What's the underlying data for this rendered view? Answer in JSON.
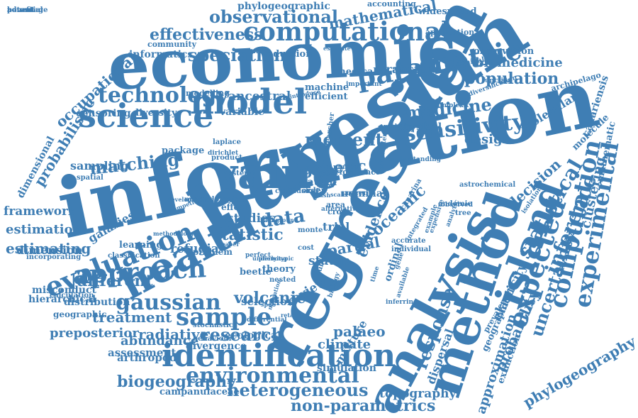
{
  "title": "",
  "colors": {
    "word": "#3f7eb4",
    "background": "#ffffff"
  },
  "words": [
    {
      "text": "information",
      "weight": 100
    },
    {
      "text": "bayesian",
      "weight": 98
    },
    {
      "text": "regression",
      "weight": 95
    },
    {
      "text": "economic",
      "weight": 75
    },
    {
      "text": "analysis",
      "weight": 72
    },
    {
      "text": "method",
      "weight": 68
    },
    {
      "text": "health",
      "weight": 58
    },
    {
      "text": "value",
      "weight": 55
    },
    {
      "text": "island",
      "weight": 52
    },
    {
      "text": "model",
      "weight": 50
    },
    {
      "text": "science",
      "weight": 48
    },
    {
      "text": "computational",
      "weight": 45
    },
    {
      "text": "identification",
      "weight": 45
    },
    {
      "text": "parametric",
      "weight": 44
    },
    {
      "text": "approach",
      "weight": 42
    },
    {
      "text": "expected",
      "weight": 42
    },
    {
      "text": "computation",
      "weight": 40
    },
    {
      "text": "experimental",
      "weight": 38
    },
    {
      "text": "evaluation",
      "weight": 38
    },
    {
      "text": "sample",
      "weight": 37
    },
    {
      "text": "environmental",
      "weight": 36
    },
    {
      "text": "sensitivity",
      "weight": 35
    },
    {
      "text": "technology",
      "weight": 34
    },
    {
      "text": "statistical",
      "weight": 34
    },
    {
      "text": "inference",
      "weight": 32
    },
    {
      "text": "gaussian",
      "weight": 32
    },
    {
      "text": "observational",
      "weight": 30
    },
    {
      "text": "research",
      "weight": 30
    },
    {
      "text": "medicine",
      "weight": 30
    },
    {
      "text": "uncertainty",
      "weight": 28
    },
    {
      "text": "moment",
      "weight": 28
    },
    {
      "text": "data",
      "weight": 28
    },
    {
      "text": "heterogeneous",
      "weight": 27
    },
    {
      "text": "non-parametrics",
      "weight": 27
    },
    {
      "text": "response",
      "weight": 27
    },
    {
      "text": "speciation",
      "weight": 26
    },
    {
      "text": "effectiveness",
      "weight": 26
    },
    {
      "text": "matching",
      "weight": 26
    },
    {
      "text": "mathematical",
      "weight": 25
    },
    {
      "text": "phylogeography",
      "weight": 25
    },
    {
      "text": "probabilistic",
      "weight": 25
    },
    {
      "text": "biogeography",
      "weight": 25
    },
    {
      "text": "treatment",
      "weight": 24
    },
    {
      "text": "preposterior",
      "weight": 24
    },
    {
      "text": "occupational",
      "weight": 24
    },
    {
      "text": "population",
      "weight": 24
    },
    {
      "text": "volcanic",
      "weight": 24
    },
    {
      "text": "genetic",
      "weight": 24
    },
    {
      "text": "evidence",
      "weight": 23
    },
    {
      "text": "statistic",
      "weight": 23
    },
    {
      "text": "decision",
      "weight": 23
    },
    {
      "text": "probability",
      "weight": 23
    },
    {
      "text": "approximation",
      "weight": 23
    },
    {
      "text": "different",
      "weight": 22
    },
    {
      "text": "estimating",
      "weight": 22
    },
    {
      "text": "palaeo",
      "weight": 22
    },
    {
      "text": "oceanic",
      "weight": 22
    },
    {
      "text": "radiative",
      "weight": 22
    },
    {
      "text": "climate",
      "weight": 22
    },
    {
      "text": "design",
      "weight": 21
    },
    {
      "text": "estimation",
      "weight": 21
    },
    {
      "text": "framework",
      "weight": 20
    },
    {
      "text": "ancestral",
      "weight": 20
    },
    {
      "text": "partial",
      "weight": 20
    },
    {
      "text": "clustering",
      "weight": 20
    },
    {
      "text": "abundance",
      "weight": 20
    },
    {
      "text": "biomedicine",
      "weight": 20
    },
    {
      "text": "topography",
      "weight": 19
    },
    {
      "text": "mixture",
      "weight": 19
    },
    {
      "text": "elasticity",
      "weight": 19
    },
    {
      "text": "dispersal",
      "weight": 19
    },
    {
      "text": "molecular",
      "weight": 19
    },
    {
      "text": "transfer",
      "weight": 19
    },
    {
      "text": "refugia",
      "weight": 18
    },
    {
      "text": "phylogeographic",
      "weight": 18
    },
    {
      "text": "informatics",
      "weight": 18
    },
    {
      "text": "dimension",
      "weight": 18
    },
    {
      "text": "sampling",
      "weight": 18
    },
    {
      "text": "galaxies",
      "weight": 18
    },
    {
      "text": "selection",
      "weight": 17
    },
    {
      "text": "statap",
      "weight": 17
    },
    {
      "text": "studies",
      "weight": 17
    },
    {
      "text": "review",
      "weight": 17
    },
    {
      "text": "trial",
      "weight": 17
    },
    {
      "text": "canariensis",
      "weight": 16
    },
    {
      "text": "mathematic",
      "weight": 16
    },
    {
      "text": "dimensional",
      "weight": 16
    },
    {
      "text": "geographical",
      "weight": 16
    },
    {
      "text": "extinction",
      "weight": 16
    },
    {
      "text": "assessment",
      "weight": 16
    },
    {
      "text": "distribution",
      "weight": 16
    },
    {
      "text": "arthropod",
      "weight": 16
    },
    {
      "text": "censoring",
      "weight": 16
    },
    {
      "text": "divergence",
      "weight": 15
    },
    {
      "text": "simulation",
      "weight": 15
    },
    {
      "text": "hierarchical",
      "weight": 15
    },
    {
      "text": "misconduct",
      "weight": 15
    },
    {
      "text": "campanulaceae",
      "weight": 15
    },
    {
      "text": "variable",
      "weight": 15
    },
    {
      "text": "ecological",
      "weight": 15
    },
    {
      "text": "nominal",
      "weight": 15
    },
    {
      "text": "physical",
      "weight": 15
    },
    {
      "text": "diversity",
      "weight": 14
    },
    {
      "text": "widespread",
      "weight": 14
    },
    {
      "text": "observation",
      "weight": 14
    },
    {
      "text": "molecule",
      "weight": 14
    },
    {
      "text": "reduction",
      "weight": 14
    },
    {
      "text": "machine",
      "weight": 14
    },
    {
      "text": "efficient",
      "weight": 14
    },
    {
      "text": "medical",
      "weight": 14
    },
    {
      "text": "ordinal",
      "weight": 14
    },
    {
      "text": "causal",
      "weight": 14
    },
    {
      "text": "theory",
      "weight": 14
    },
    {
      "text": "beetle",
      "weight": 14
    },
    {
      "text": "learning",
      "weight": 14
    },
    {
      "text": "package",
      "weight": 13
    },
    {
      "text": "effect",
      "weight": 13
    },
    {
      "text": "geographic",
      "weight": 13
    },
    {
      "text": "problem",
      "weight": 13
    },
    {
      "text": "modelling",
      "weight": 12
    },
    {
      "text": "accounting",
      "weight": 12
    },
    {
      "text": "application",
      "weight": 12
    },
    {
      "text": "community",
      "weight": 12
    },
    {
      "text": "archipelago",
      "weight": 12
    },
    {
      "text": "prevalence",
      "weight": 12
    },
    {
      "text": "stochastic",
      "weight": 12
    },
    {
      "text": "behaviour",
      "weight": 12
    },
    {
      "text": "calculation",
      "weight": 12
    },
    {
      "text": "incorporating",
      "weight": 12
    },
    {
      "text": "classification",
      "weight": 12
    },
    {
      "text": "performance",
      "weight": 12
    },
    {
      "text": "order",
      "weight": 12
    },
    {
      "text": "cross",
      "weight": 12
    },
    {
      "text": "area",
      "weight": 12
    },
    {
      "text": "tree",
      "weight": 11
    },
    {
      "text": "endemic",
      "weight": 11
    },
    {
      "text": "variation",
      "weight": 11
    },
    {
      "text": "astrochemical",
      "weight": 11
    },
    {
      "text": "canarina",
      "weight": 11
    },
    {
      "text": "clinical",
      "weight": 11
    },
    {
      "text": "methodological",
      "weight": 11
    },
    {
      "text": "product",
      "weight": 11
    },
    {
      "text": "spatial",
      "weight": 11
    },
    {
      "text": "perfect",
      "weight": 11
    },
    {
      "text": "differential",
      "weight": 11
    },
    {
      "text": "accurate",
      "weight": 11
    },
    {
      "text": "individual",
      "weight": 11
    },
    {
      "text": "public",
      "weight": 11
    },
    {
      "text": "laplace",
      "weight": 11
    },
    {
      "text": "dirichlet",
      "weight": 11
    },
    {
      "text": "posterior",
      "weight": 11
    },
    {
      "text": "researcher",
      "weight": 11
    },
    {
      "text": "number",
      "weight": 11
    },
    {
      "text": "recent",
      "weight": 11
    },
    {
      "text": "nested",
      "weight": 11
    },
    {
      "text": "monte",
      "weight": 11
    },
    {
      "text": "cost",
      "weight": 11
    },
    {
      "text": "biology",
      "weight": 11
    },
    {
      "text": "time",
      "weight": 11
    },
    {
      "text": "gene",
      "weight": 11
    },
    {
      "text": "expensive",
      "weight": 11
    },
    {
      "text": "example",
      "weight": 11
    },
    {
      "text": "analytic",
      "weight": 11
    },
    {
      "text": "integrated",
      "weight": 11
    },
    {
      "text": "available",
      "weight": 11
    },
    {
      "text": "inferring",
      "weight": 11
    },
    {
      "text": "isolation",
      "weight": 10
    },
    {
      "text": "observed",
      "weight": 10
    },
    {
      "text": "complexity",
      "weight": 10
    },
    {
      "text": "diversification",
      "weight": 10
    },
    {
      "text": "function",
      "weight": 10
    },
    {
      "text": "emulation",
      "weight": 10
    },
    {
      "text": "understanding",
      "weight": 10
    },
    {
      "text": "parameter",
      "weight": 10
    },
    {
      "text": "important",
      "weight": 10
    },
    {
      "text": "introduce",
      "weight": 10
    },
    {
      "text": "estimate",
      "weight": 10
    },
    {
      "text": "development",
      "weight": 10
    },
    {
      "text": "competition",
      "weight": 10
    },
    {
      "text": "methodology",
      "weight": 10
    },
    {
      "text": "equation",
      "weight": 10
    },
    {
      "text": "alternative",
      "weight": 10
    },
    {
      "text": "conclusion",
      "weight": 10
    },
    {
      "text": "blue",
      "weight": 10
    },
    {
      "text": "fish",
      "weight": 10
    },
    {
      "text": "scale",
      "weight": 10
    },
    {
      "text": "paper",
      "weight": 10
    },
    {
      "text": "spdo",
      "weight": 10
    },
    {
      "text": "retail",
      "weight": 10
    },
    {
      "text": "migration",
      "weight": 10
    },
    {
      "text": "background",
      "weight": 10
    },
    {
      "text": "phenotypic",
      "weight": 10
    },
    {
      "text": "underlying",
      "weight": 10
    },
    {
      "text": "benefit",
      "weight": 10
    },
    {
      "text": "potential",
      "weight": 10
    },
    {
      "text": "advantage",
      "weight": 10
    }
  ]
}
